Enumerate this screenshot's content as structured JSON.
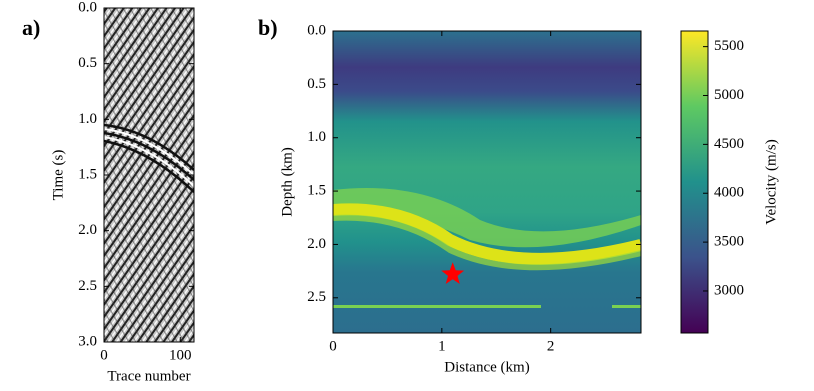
{
  "chart_data": [
    {
      "type": "image",
      "panel_label": "a)",
      "xlabel": "Trace number",
      "ylabel": "Time (s)",
      "xlim": [
        0,
        118
      ],
      "xticks": [
        0,
        100
      ],
      "ylim": [
        3.0,
        0.0
      ],
      "yticks": [
        {
          "value": 0,
          "label": "0.0"
        },
        {
          "value": 0.5,
          "label": "0.5"
        },
        {
          "value": 1,
          "label": "1.0"
        },
        {
          "value": 1.5,
          "label": "1.5"
        },
        {
          "value": 2,
          "label": "2.0"
        },
        {
          "value": 2.5,
          "label": "2.5"
        },
        {
          "value": 3,
          "label": "3.0"
        }
      ]
    },
    {
      "type": "heatmap",
      "panel_label": "b)",
      "xlabel": "Distance (km)",
      "ylabel": "Depth (km)",
      "xlim": [
        0,
        2.83
      ],
      "xticks": [
        0,
        1,
        2
      ],
      "ylim": [
        2.83,
        0.0
      ],
      "yticks": [
        {
          "value": 0,
          "label": "0.0"
        },
        {
          "value": 0.5,
          "label": "0.5"
        },
        {
          "value": 1,
          "label": "1.0"
        },
        {
          "value": 1.5,
          "label": "1.5"
        },
        {
          "value": 2,
          "label": "2.0"
        },
        {
          "value": 2.5,
          "label": "2.5"
        }
      ],
      "marker": {
        "x": 1.1,
        "y": 2.28,
        "color": "#ff0000"
      },
      "colorbar": {
        "label": "Velocity (m/s)",
        "clim": [
          2570,
          5660
        ],
        "ticks": [
          3000,
          3500,
          4000,
          4500,
          5000,
          5500
        ]
      }
    }
  ]
}
